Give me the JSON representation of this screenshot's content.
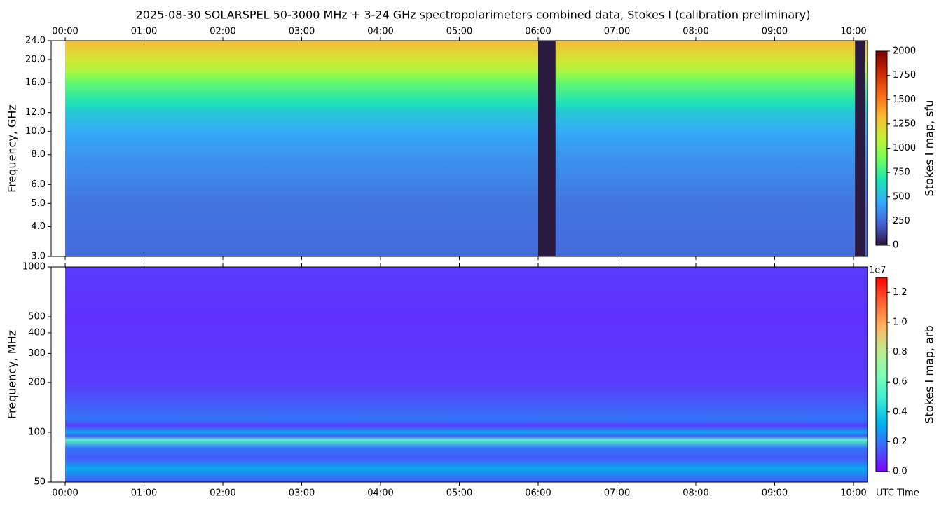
{
  "chart_data": [
    {
      "type": "heatmap",
      "title": "2025-08-30  SOLARSPEL  50-3000 MHz  +  3-24 GHz  spectropolarimeters combined data,  Stokes I  (calibration preliminary)",
      "ylabel": "Frequency, GHz",
      "xlim": [
        -0.178,
        10.178
      ],
      "xticks": [
        {
          "value": 0,
          "label": "00:00"
        },
        {
          "value": 1,
          "label": "01:00"
        },
        {
          "value": 2,
          "label": "02:00"
        },
        {
          "value": 3,
          "label": "03:00"
        },
        {
          "value": 4,
          "label": "04:00"
        },
        {
          "value": 5,
          "label": "05:00"
        },
        {
          "value": 6,
          "label": "06:00"
        },
        {
          "value": 7,
          "label": "07:00"
        },
        {
          "value": 8,
          "label": "08:00"
        },
        {
          "value": 9,
          "label": "09:00"
        },
        {
          "value": 10,
          "label": "10:00"
        }
      ],
      "xticks_position": "top",
      "log_y": true,
      "ylim": [
        3,
        24
      ],
      "yticks": [
        {
          "value": 3,
          "label": "3.0"
        },
        {
          "value": 4,
          "label": "4.0"
        },
        {
          "value": 5,
          "label": "5.0"
        },
        {
          "value": 6,
          "label": "6.0"
        },
        {
          "value": 8,
          "label": "8.0"
        },
        {
          "value": 10,
          "label": "10.0"
        },
        {
          "value": 12,
          "label": "12.0"
        },
        {
          "value": 16,
          "label": "16.0"
        },
        {
          "value": 20,
          "label": "20.0"
        },
        {
          "value": 24,
          "label": "24.0"
        }
      ],
      "profile": {
        "y": [
          3,
          5,
          6,
          8,
          10,
          12,
          13,
          16,
          17,
          18,
          20,
          22,
          24
        ],
        "values": [
          250,
          280,
          320,
          380,
          450,
          560,
          650,
          850,
          950,
          1050,
          1150,
          1250,
          1300
        ]
      },
      "gaps": [
        [
          6.0,
          6.22
        ],
        [
          10.02,
          10.15
        ]
      ],
      "gap_color": "#2b1a3f",
      "colorbar": {
        "label": "Stokes I map, sfu",
        "lim": [
          0,
          2000
        ],
        "ticks": [
          0,
          250,
          500,
          750,
          1000,
          1250,
          1500,
          1750,
          2000
        ],
        "colormap": [
          "#30123b",
          "#4662d7",
          "#36aaf9",
          "#1ae4b6",
          "#72fe5e",
          "#c7ef34",
          "#fbb938",
          "#f56918",
          "#c82803",
          "#7a0403"
        ]
      }
    },
    {
      "type": "heatmap",
      "ylabel": "Frequency, MHz",
      "xlabel": "UTC Time",
      "xlim": [
        -0.178,
        10.178
      ],
      "xticks": [
        {
          "value": 0,
          "label": "00:00"
        },
        {
          "value": 1,
          "label": "01:00"
        },
        {
          "value": 2,
          "label": "02:00"
        },
        {
          "value": 3,
          "label": "03:00"
        },
        {
          "value": 4,
          "label": "04:00"
        },
        {
          "value": 5,
          "label": "05:00"
        },
        {
          "value": 6,
          "label": "06:00"
        },
        {
          "value": 7,
          "label": "07:00"
        },
        {
          "value": 8,
          "label": "08:00"
        },
        {
          "value": 9,
          "label": "09:00"
        },
        {
          "value": 10,
          "label": "10:00"
        }
      ],
      "xticks_position": "bottom",
      "log_y": true,
      "ylim": [
        50,
        1000
      ],
      "yticks": [
        50,
        100,
        200,
        300,
        400,
        500,
        1000
      ],
      "profile": {
        "y": [
          50,
          60,
          70,
          80,
          90,
          95,
          100,
          110,
          120,
          150,
          200,
          500,
          1000
        ],
        "values": [
          0.15,
          0.3,
          0.15,
          0.2,
          0.55,
          0.15,
          0.3,
          0.1,
          0.2,
          0.15,
          0.1,
          0.08,
          0.1
        ]
      },
      "colorbar": {
        "label": "Stokes I map, arb",
        "offset": "1e7",
        "lim": [
          0,
          1.3
        ],
        "ticks": [
          {
            "value": 0,
            "label": "0.0"
          },
          {
            "value": 0.2,
            "label": "0.2"
          },
          {
            "value": 0.4,
            "label": "0.4"
          },
          {
            "value": 0.6,
            "label": "0.6"
          },
          {
            "value": 0.8,
            "label": "0.8"
          },
          {
            "value": 1.0,
            "label": "1.0"
          },
          {
            "value": 1.2,
            "label": "1.2"
          }
        ],
        "colormap": [
          "#8000ff",
          "#4062fa",
          "#00b5eb",
          "#40ecd4",
          "#80ffb4",
          "#c0eb8d",
          "#ffb462",
          "#ff6232",
          "#ff0000"
        ]
      }
    }
  ]
}
